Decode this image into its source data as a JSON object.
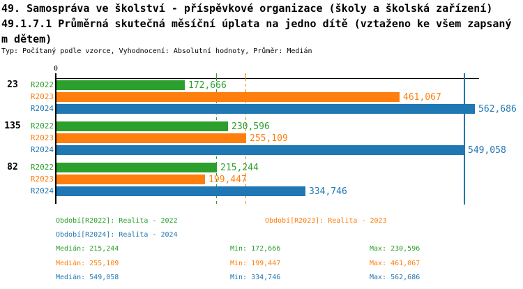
{
  "header": {
    "title_line1": "49. Samospráva ve školství - příspěvkové organizace (školy a školská zařízení)",
    "title_line2": "49.1.7.1 Průměrná skutečná měsíční úplata na jedno dítě (vztaženo ke všem zapsaný",
    "title_line3": "m dětem)",
    "meta": "Typ: Počítaný podle vzorce, Vyhodnocení: Absolutní hodnoty, Průměr: Medián"
  },
  "chart_data": {
    "type": "bar",
    "orientation": "horizontal",
    "title": "49.1.7.1 Průměrná skutečná měsíční úplata na jedno dítě (vztaženo ke všem zapsaným dětem)",
    "categories": [
      "23",
      "135",
      "82"
    ],
    "series": [
      {
        "name": "R2022",
        "color": "#2ca02c",
        "values": [
          172666,
          230596,
          215244
        ],
        "value_labels": [
          "172,666",
          "230,596",
          "215,244"
        ],
        "median": 215244
      },
      {
        "name": "R2023",
        "color": "#ff7f0e",
        "values": [
          461067,
          255109,
          199447
        ],
        "value_labels": [
          "461,067",
          "255,109",
          "199,447"
        ],
        "median": 255109
      },
      {
        "name": "R2024",
        "color": "#1f77b4",
        "values": [
          562686,
          549058,
          334746
        ],
        "value_labels": [
          "562,686",
          "549,058",
          "334,746"
        ],
        "median": 549058
      }
    ],
    "axis": {
      "origin_label": "0",
      "xmin": 0,
      "xmax": 567000,
      "grid": "median-lines-per-series"
    },
    "legend_position": "bottom"
  },
  "legend": {
    "items": [
      {
        "label": "Období[R2022]: Realita - 2022",
        "series": "R2022"
      },
      {
        "label": "Období[R2023]: Realita - 2023",
        "series": "R2023"
      },
      {
        "label": "Období[R2024]: Realita - 2024",
        "series": "R2024"
      }
    ]
  },
  "stats": {
    "median_prefix": "Medián",
    "min_prefix": "Min",
    "max_prefix": "Max",
    "rows": [
      {
        "series": "R2022",
        "median": "215,244",
        "min": "172,666",
        "max": "230,596"
      },
      {
        "series": "R2023",
        "median": "255,109",
        "min": "199,447",
        "max": "461,067"
      },
      {
        "series": "R2024",
        "median": "549,058",
        "min": "334,746",
        "max": "562,686"
      }
    ]
  },
  "colors": {
    "series_green": "#2ca02c",
    "series_orange": "#ff7f0e",
    "series_blue": "#1f77b4",
    "axis": "#000000",
    "background": "#ffffff"
  }
}
